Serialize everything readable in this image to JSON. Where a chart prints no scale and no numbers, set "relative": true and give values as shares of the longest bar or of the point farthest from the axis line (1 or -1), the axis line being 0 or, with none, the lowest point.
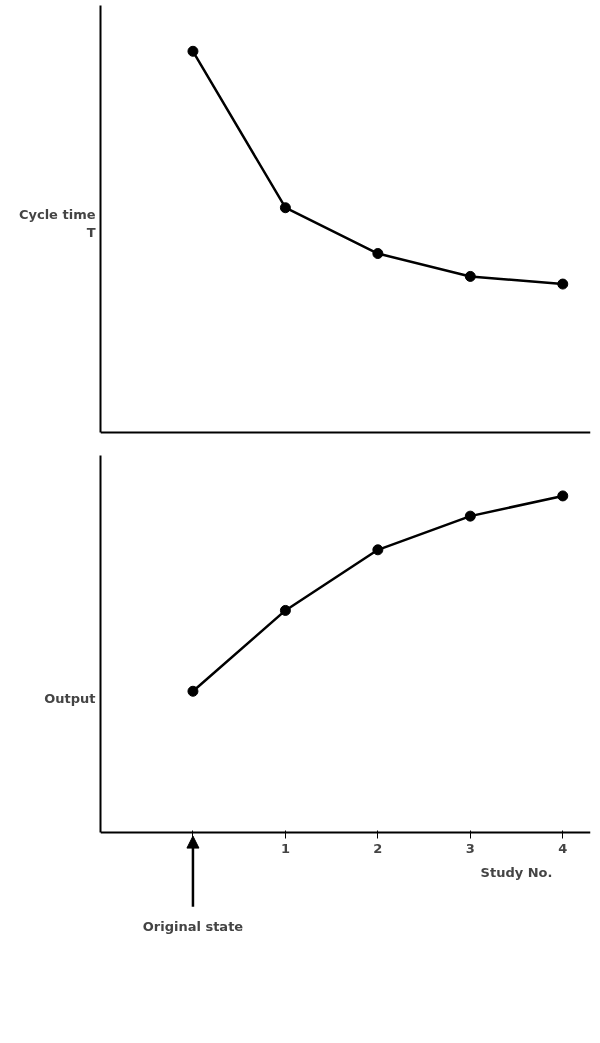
{
  "chart_data": [
    {
      "type": "line",
      "ylabel": "Cycle time\nT",
      "categories": [
        null,
        "1",
        "2",
        "3",
        "4"
      ],
      "relative": true,
      "tick_labels": false,
      "marker": "circle",
      "line_style": "solid",
      "series": [
        {
          "color": "#000000",
          "values": [
            1,
            0.59,
            0.47,
            0.41,
            0.39
          ]
        }
      ]
    },
    {
      "type": "line",
      "ylabel": "Output",
      "xlabel": "Study No.",
      "categories": [
        null,
        "1",
        "2",
        "3",
        "4"
      ],
      "relative": true,
      "tick_labels": "x",
      "marker": "circle",
      "line_style": "solid",
      "annotations": [
        "Original state"
      ],
      "series": [
        {
          "color": "#000000",
          "values": [
            0.42,
            0.66,
            0.84,
            0.94,
            1
          ]
        }
      ]
    }
  ]
}
